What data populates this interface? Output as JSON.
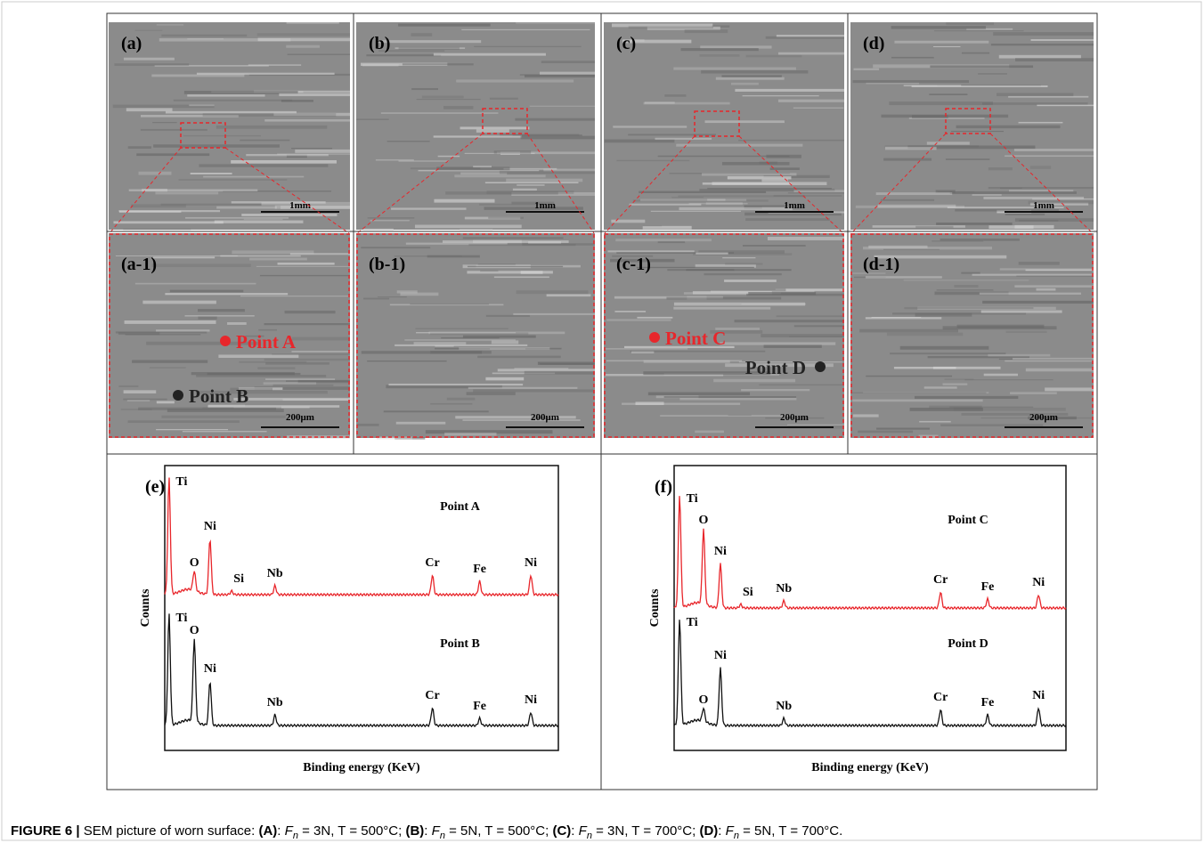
{
  "figure": {
    "overview_panels": [
      {
        "label": "(a)",
        "scale": "1mm"
      },
      {
        "label": "(b)",
        "scale": "1mm"
      },
      {
        "label": "(c)",
        "scale": "1mm"
      },
      {
        "label": "(d)",
        "scale": "1mm"
      }
    ],
    "detail_panels": [
      {
        "label": "(a-1)",
        "scale": "200μm",
        "points": [
          {
            "name": "Point A",
            "color": "#e8262b"
          },
          {
            "name": "Point B",
            "color": "#222222"
          }
        ]
      },
      {
        "label": "(b-1)",
        "scale": "200μm",
        "points": []
      },
      {
        "label": "(c-1)",
        "scale": "200μm",
        "points": [
          {
            "name": "Point C",
            "color": "#e8262b"
          },
          {
            "name": "Point D",
            "color": "#222222"
          }
        ]
      },
      {
        "label": "(d-1)",
        "scale": "200μm",
        "points": []
      }
    ],
    "spectra": [
      {
        "label": "(e)",
        "y_label": "Counts",
        "x_label": "Binding energy (KeV)",
        "traces": [
          {
            "name": "Point A",
            "color": "#e8262b",
            "peaks": [
              "Ti",
              "O",
              "Ni",
              "Si",
              "Nb",
              "Cr",
              "Fe",
              "Ni"
            ]
          },
          {
            "name": "Point B",
            "color": "#111111",
            "peaks": [
              "Ti",
              "O",
              "Ni",
              "Nb",
              "Cr",
              "Fe",
              "Ni"
            ]
          }
        ]
      },
      {
        "label": "(f)",
        "y_label": "Counts",
        "x_label": "Binding energy (KeV)",
        "traces": [
          {
            "name": "Point C",
            "color": "#e8262b",
            "peaks": [
              "Ti",
              "O",
              "Ni",
              "Si",
              "Nb",
              "Cr",
              "Fe",
              "Ni"
            ]
          },
          {
            "name": "Point D",
            "color": "#111111",
            "peaks": [
              "Ti",
              "O",
              "Ni",
              "Nb",
              "Cr",
              "Fe",
              "Ni"
            ]
          }
        ]
      }
    ],
    "caption": {
      "label": "FIGURE 6 |",
      "intro": "SEM picture of worn surface:",
      "items": [
        {
          "tag": "(A)",
          "symbol": "F",
          "subscript": "n",
          "text": " = 3N, T = 500°C;"
        },
        {
          "tag": "(B)",
          "symbol": "F",
          "subscript": "n",
          "text": " = 5N, T = 500°C;"
        },
        {
          "tag": "(C)",
          "symbol": "F",
          "subscript": "n",
          "text": " = 3N, T = 700°C;"
        },
        {
          "tag": "(D)",
          "symbol": "F",
          "subscript": "n",
          "text": " = 5N, T = 700°C."
        }
      ]
    }
  }
}
